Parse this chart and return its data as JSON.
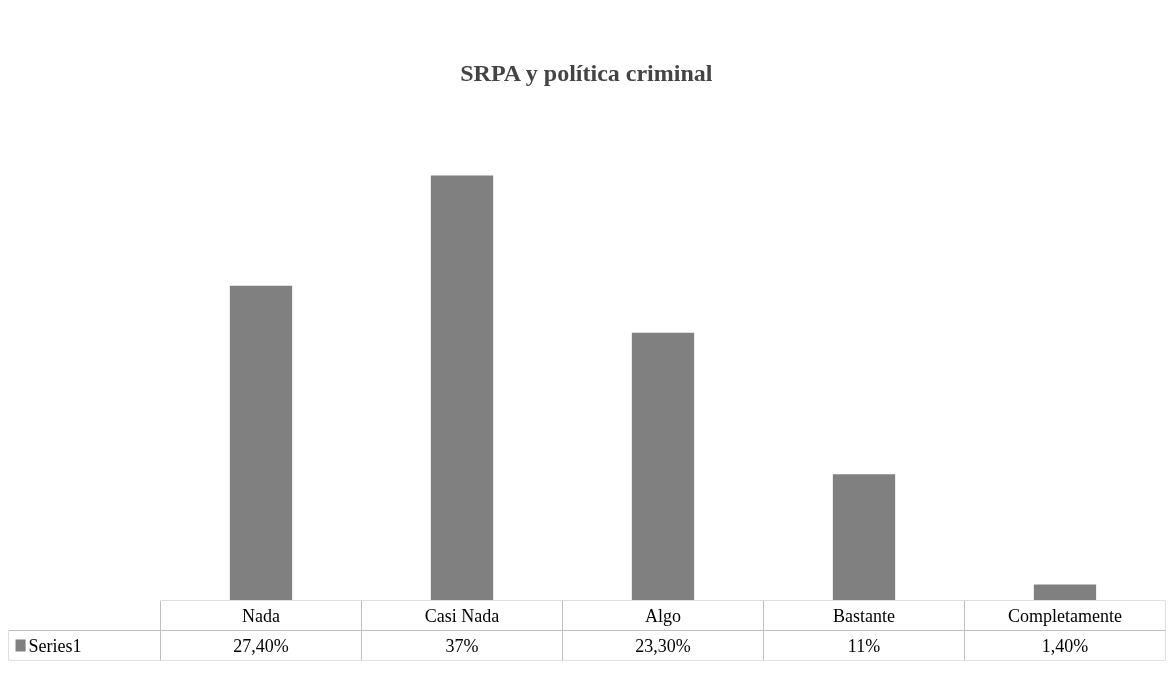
{
  "chart_data": {
    "type": "bar",
    "title": "SRPA y política criminal",
    "categories": [
      "Nada",
      "Casi Nada",
      "Algo",
      "Bastante",
      "Completamente"
    ],
    "series": [
      {
        "name": "Series1",
        "color": "#808080",
        "values": [
          27.4,
          37,
          23.3,
          11,
          1.4
        ],
        "value_labels": [
          "27,40%",
          "37%",
          "23,30%",
          "11%",
          "1,40%"
        ]
      }
    ],
    "grid": false
  }
}
